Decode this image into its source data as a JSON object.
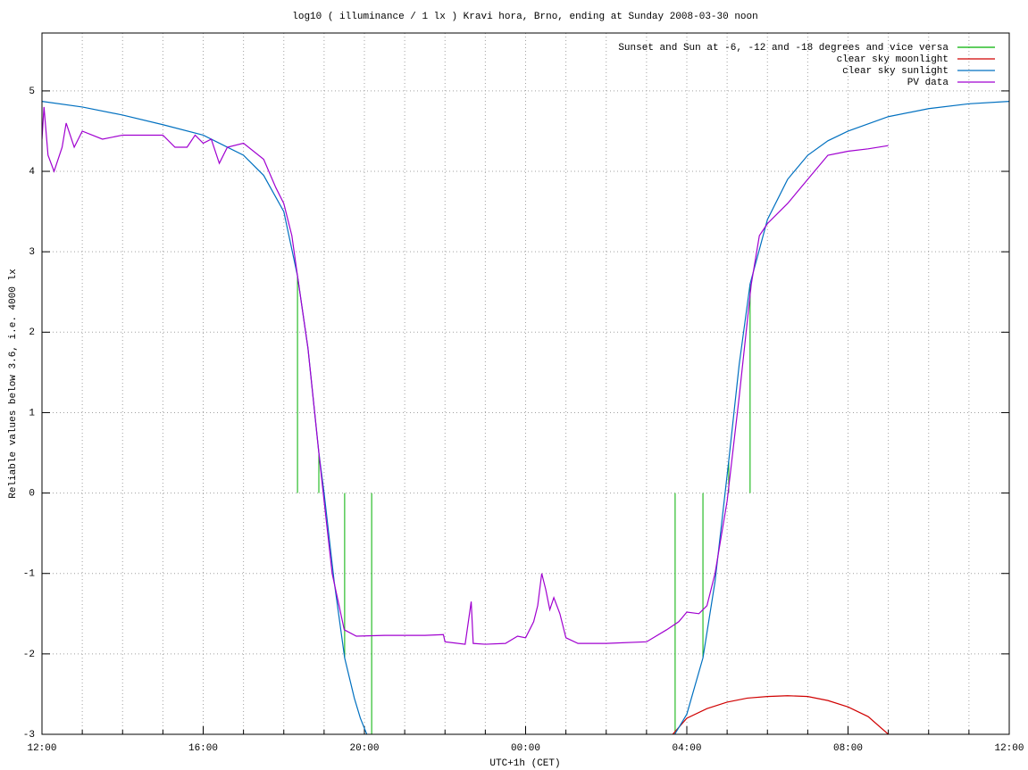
{
  "chart_data": {
    "type": "line",
    "title": "log10 ( illuminance / 1 lx ) Kravi hora, Brno, ending at Sunday 2008-03-30 noon",
    "xlabel": "UTC+1h (CET)",
    "ylabel": "Reliable values below 3.6, i.e. 4000 lx",
    "xlim": [
      0,
      24
    ],
    "ylim": [
      -3,
      5.72
    ],
    "xticks": [
      {
        "value": 0,
        "label": "12:00"
      },
      {
        "value": 4,
        "label": "16:00"
      },
      {
        "value": 8,
        "label": "20:00"
      },
      {
        "value": 12,
        "label": "00:00"
      },
      {
        "value": 16,
        "label": "04:00"
      },
      {
        "value": 20,
        "label": "08:00"
      },
      {
        "value": 24,
        "label": "12:00"
      }
    ],
    "x_minor_grid": [
      1,
      2,
      3,
      5,
      6,
      7,
      9,
      10,
      11,
      13,
      14,
      15,
      17,
      18,
      19,
      21,
      22,
      23
    ],
    "yticks": [
      -3,
      -2,
      -1,
      0,
      1,
      2,
      3,
      4,
      5
    ],
    "grid": true,
    "legend": "top-right",
    "series": [
      {
        "name": "Sunset and Sun at -6, -12 and -18 degrees and vice versa",
        "color": "#00b000",
        "style": "impulses",
        "x": [
          6.34,
          6.87,
          7.51,
          8.18,
          15.71,
          16.4,
          17.04,
          17.57
        ],
        "values": [
          2.7,
          0.5,
          -2.05,
          -3,
          -3,
          -2.05,
          0.4,
          2.6
        ]
      },
      {
        "name": "clear sky moonlight",
        "color": "#d00000",
        "style": "lines",
        "x": [
          15.65,
          16.0,
          16.5,
          17.0,
          17.5,
          18.0,
          18.5,
          19.0,
          19.5,
          20.0,
          20.5,
          21.0
        ],
        "values": [
          -3,
          -2.8,
          -2.68,
          -2.6,
          -2.55,
          -2.53,
          -2.52,
          -2.53,
          -2.58,
          -2.66,
          -2.78,
          -3
        ]
      },
      {
        "name": "clear sky sunlight",
        "color": "#0070c0",
        "style": "lines",
        "x": [
          0,
          1,
          2,
          3,
          4,
          5,
          5.5,
          6.0,
          6.34,
          6.6,
          6.87,
          7.0,
          7.25,
          7.51,
          7.75,
          7.9,
          8.06,
          12,
          15.7,
          16.0,
          16.4,
          16.7,
          17.04,
          17.3,
          17.57,
          18.0,
          18.5,
          19.0,
          19.5,
          20.0,
          21.0,
          22.0,
          23.0,
          24.0
        ],
        "values": [
          4.87,
          4.8,
          4.7,
          4.58,
          4.45,
          4.2,
          3.95,
          3.5,
          2.7,
          1.8,
          0.5,
          0.0,
          -1.1,
          -2.05,
          -2.55,
          -2.8,
          -3,
          null,
          -3,
          -2.75,
          -2.05,
          -1.1,
          0.4,
          1.6,
          2.6,
          3.4,
          3.9,
          4.2,
          4.38,
          4.5,
          4.68,
          4.78,
          4.84,
          4.87
        ]
      },
      {
        "name": "PV data",
        "color": "#a000d0",
        "style": "lines",
        "x": [
          0,
          0.05,
          0.15,
          0.3,
          0.5,
          0.6,
          0.8,
          1.0,
          1.5,
          2.0,
          2.5,
          3.0,
          3.3,
          3.6,
          3.8,
          4.0,
          4.2,
          4.4,
          4.6,
          5.0,
          5.5,
          5.8,
          6.0,
          6.2,
          6.34,
          6.6,
          6.87,
          7.0,
          7.2,
          7.5,
          7.8,
          8.5,
          9.0,
          9.5,
          9.96,
          10.0,
          10.5,
          10.65,
          10.7,
          11.0,
          11.5,
          11.8,
          12.0,
          12.2,
          12.3,
          12.4,
          12.5,
          12.6,
          12.7,
          12.85,
          13.0,
          13.3,
          14.0,
          15.0,
          15.5,
          15.8,
          16.0,
          16.3,
          16.5,
          16.7,
          17.0,
          17.3,
          17.6,
          17.8,
          18.0,
          18.5,
          19.0,
          19.5,
          20.0,
          20.5,
          21.0
        ],
        "values": [
          4.4,
          4.8,
          4.2,
          4.0,
          4.3,
          4.6,
          4.3,
          4.5,
          4.4,
          4.45,
          4.45,
          4.45,
          4.3,
          4.3,
          4.45,
          4.35,
          4.4,
          4.1,
          4.3,
          4.35,
          4.15,
          3.8,
          3.6,
          3.2,
          2.7,
          1.8,
          0.5,
          -0.1,
          -1.0,
          -1.7,
          -1.78,
          -1.77,
          -1.77,
          -1.77,
          -1.76,
          -1.85,
          -1.88,
          -1.35,
          -1.87,
          -1.88,
          -1.87,
          -1.78,
          -1.8,
          -1.6,
          -1.4,
          -1.0,
          -1.2,
          -1.45,
          -1.3,
          -1.5,
          -1.8,
          -1.87,
          -1.87,
          -1.85,
          -1.7,
          -1.6,
          -1.48,
          -1.5,
          -1.4,
          -1.0,
          -0.1,
          1.2,
          2.6,
          3.2,
          3.35,
          3.6,
          3.9,
          4.2,
          4.25,
          4.28,
          4.32
        ]
      }
    ]
  }
}
